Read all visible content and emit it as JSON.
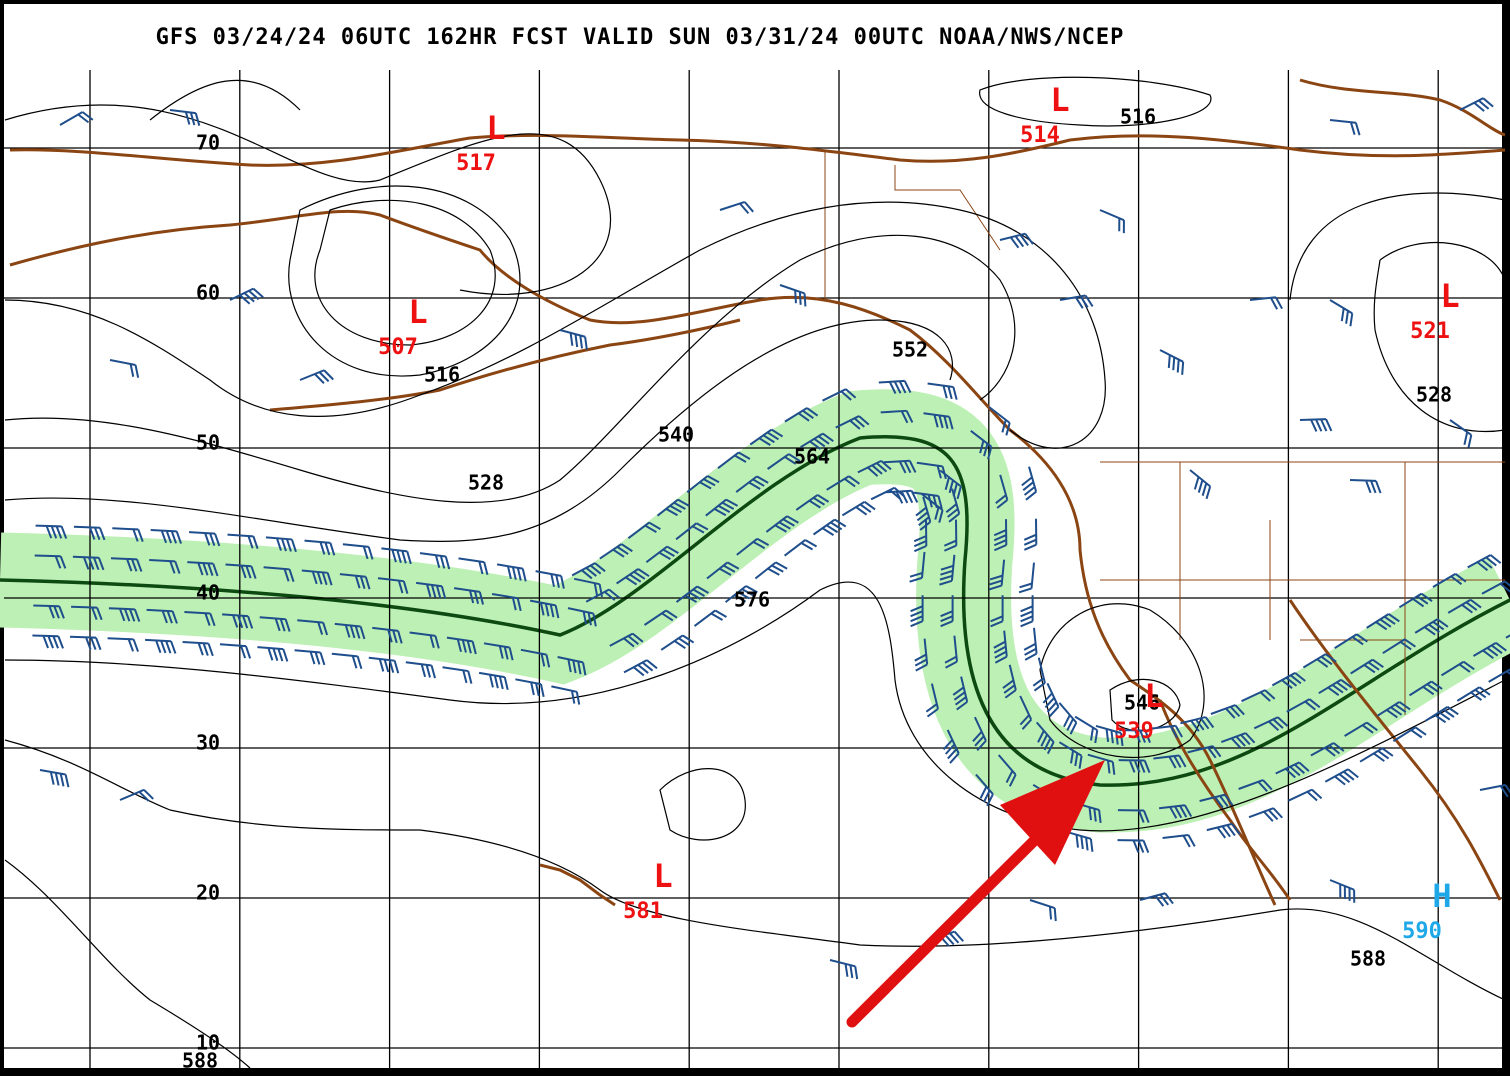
{
  "header": {
    "title": "GFS 03/24/24 06UTC 162HR FCST VALID SUN 03/31/24 00UTC NOAA/NWS/NCEP"
  },
  "latitude_labels": [
    "70",
    "60",
    "50",
    "40",
    "30",
    "20",
    "10"
  ],
  "contour_labels": [
    "516",
    "516",
    "528",
    "540",
    "552",
    "564",
    "576",
    "528",
    "546",
    "588",
    "588"
  ],
  "pressure_centers": [
    {
      "symbol": "L",
      "value": "517"
    },
    {
      "symbol": "L",
      "value": "507"
    },
    {
      "symbol": "L",
      "value": "514"
    },
    {
      "symbol": "L",
      "value": "521"
    },
    {
      "symbol": "L",
      "value": "539"
    },
    {
      "symbol": "L",
      "value": "581"
    },
    {
      "symbol": "H",
      "value": "590"
    }
  ]
}
